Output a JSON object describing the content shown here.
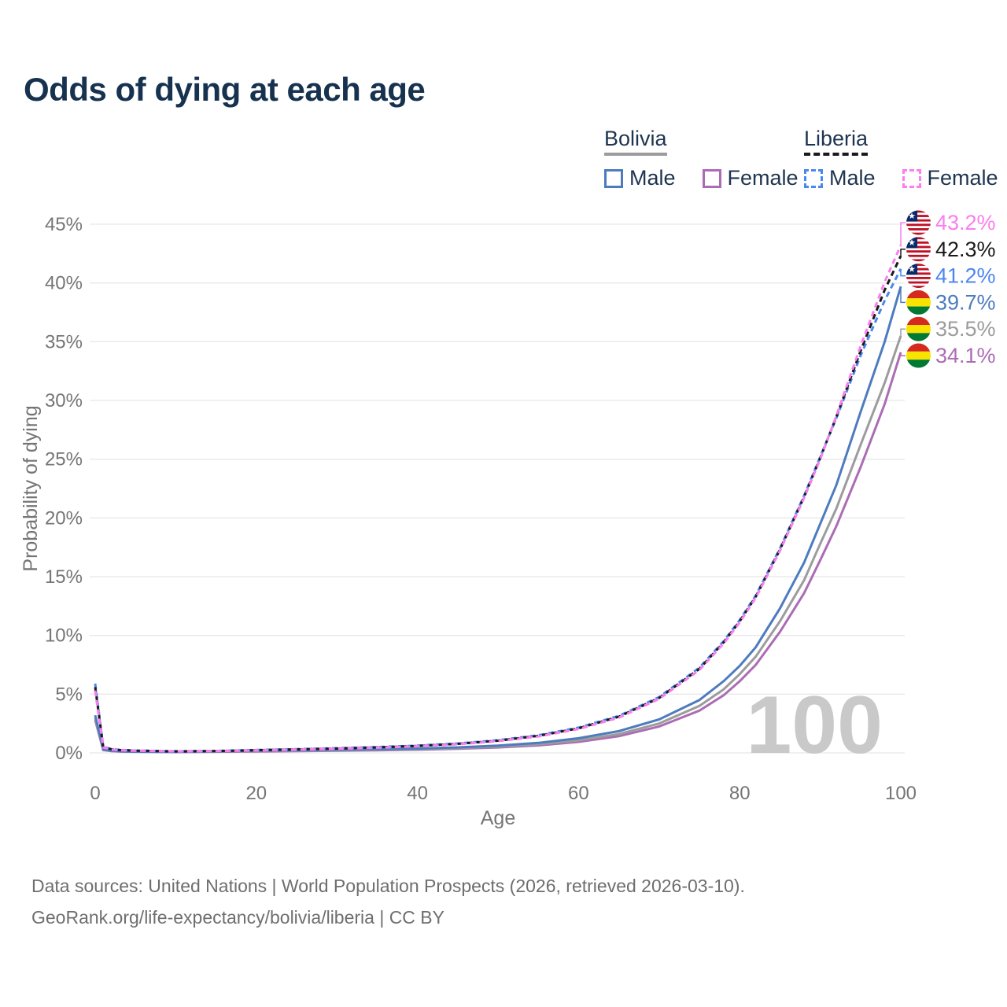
{
  "title": "Odds of dying at each age",
  "watermark": "100",
  "legend": {
    "bolivia": {
      "country": "Bolivia",
      "male": "Male",
      "female": "Female"
    },
    "liberia": {
      "country": "Liberia",
      "male": "Male",
      "female": "Female"
    }
  },
  "footer": {
    "line1": "Data sources: United Nations | World Population Prospects (2026, retrieved 2026-03-10).",
    "line2": "GeoRank.org/life-expectancy/bolivia/liberia | CC BY"
  },
  "colors": {
    "title_navy": "#16324f",
    "axis_gray": "#757575",
    "gridline": "#e8e8e8",
    "watermark_gray": "#c9c9c9"
  },
  "chart_data": {
    "type": "line",
    "title": "Odds of dying at each age",
    "xlabel": "Age",
    "ylabel": "Probability of dying",
    "xlim": [
      0,
      100
    ],
    "ylim": [
      0,
      45
    ],
    "xticks": [
      0,
      20,
      40,
      60,
      80,
      100
    ],
    "yticks": [
      0,
      5,
      10,
      15,
      20,
      25,
      30,
      35,
      40,
      45
    ],
    "grid": true,
    "legend_position": "top-right",
    "x": [
      0,
      1,
      2,
      3,
      5,
      10,
      15,
      20,
      25,
      30,
      35,
      40,
      45,
      50,
      55,
      60,
      65,
      70,
      75,
      78,
      80,
      82,
      85,
      88,
      90,
      92,
      95,
      98,
      100
    ],
    "series": [
      {
        "key": "liberia-female",
        "name": "Liberia Female",
        "country": "Liberia",
        "sex": "Female",
        "color": "#fb7df0",
        "dash": "7 5",
        "flag": "liberia",
        "end_value": 43.2,
        "end_label": "43.2%",
        "values": [
          5.3,
          0.46,
          0.29,
          0.23,
          0.18,
          0.12,
          0.15,
          0.21,
          0.28,
          0.35,
          0.44,
          0.56,
          0.73,
          1.0,
          1.4,
          2.03,
          3.0,
          4.6,
          7.05,
          9.3,
          11.1,
          13.2,
          17.2,
          21.7,
          25.0,
          28.7,
          34.6,
          40.1,
          43.2
        ]
      },
      {
        "key": "liberia",
        "name": "Liberia (both sexes)",
        "country": "Liberia",
        "sex": "Both",
        "color": "#1a1a1a",
        "dash": "7 5",
        "flag": "liberia",
        "end_value": 42.3,
        "end_label": "42.3%",
        "values": [
          5.6,
          0.49,
          0.31,
          0.24,
          0.19,
          0.13,
          0.16,
          0.23,
          0.3,
          0.37,
          0.47,
          0.59,
          0.77,
          1.04,
          1.45,
          2.09,
          3.08,
          4.67,
          7.15,
          9.4,
          11.2,
          13.3,
          17.3,
          21.8,
          25.1,
          28.6,
          34.2,
          39.4,
          42.3
        ]
      },
      {
        "key": "liberia-male",
        "name": "Liberia Male",
        "country": "Liberia",
        "sex": "Male",
        "color": "#4b87f0",
        "dash": "7 5",
        "flag": "liberia",
        "end_value": 41.2,
        "end_label": "41.2%",
        "values": [
          5.9,
          0.52,
          0.33,
          0.26,
          0.2,
          0.14,
          0.17,
          0.25,
          0.32,
          0.4,
          0.5,
          0.62,
          0.8,
          1.08,
          1.5,
          2.15,
          3.15,
          4.75,
          7.25,
          9.5,
          11.3,
          13.4,
          17.4,
          21.9,
          25.2,
          28.5,
          33.8,
          38.5,
          41.2
        ]
      },
      {
        "key": "bolivia-male",
        "name": "Bolivia Male",
        "country": "Bolivia",
        "sex": "Male",
        "color": "#4d7cbe",
        "dash": null,
        "flag": "bolivia",
        "end_value": 39.7,
        "end_label": "39.7%",
        "values": [
          3.2,
          0.28,
          0.18,
          0.14,
          0.11,
          0.09,
          0.13,
          0.19,
          0.23,
          0.27,
          0.31,
          0.37,
          0.47,
          0.62,
          0.85,
          1.25,
          1.85,
          2.85,
          4.5,
          6.1,
          7.4,
          9.0,
          12.3,
          16.2,
          19.5,
          22.8,
          29.0,
          35.0,
          39.7
        ]
      },
      {
        "key": "bolivia",
        "name": "Bolivia (both sexes)",
        "country": "Bolivia",
        "sex": "Both",
        "color": "#9c9c9c",
        "dash": null,
        "flag": "bolivia",
        "end_value": 35.5,
        "end_label": "35.5%",
        "values": [
          3.0,
          0.26,
          0.16,
          0.13,
          0.1,
          0.08,
          0.11,
          0.15,
          0.185,
          0.22,
          0.26,
          0.31,
          0.4,
          0.53,
          0.73,
          1.07,
          1.6,
          2.5,
          4.0,
          5.4,
          6.7,
          8.2,
          11.2,
          14.7,
          17.8,
          20.8,
          26.2,
          31.5,
          35.5
        ]
      },
      {
        "key": "bolivia-female",
        "name": "Bolivia Female",
        "country": "Bolivia",
        "sex": "Female",
        "color": "#ac6cb5",
        "dash": null,
        "flag": "bolivia",
        "end_value": 34.1,
        "end_label": "34.1%",
        "values": [
          2.8,
          0.24,
          0.15,
          0.12,
          0.09,
          0.07,
          0.09,
          0.12,
          0.15,
          0.18,
          0.22,
          0.27,
          0.35,
          0.46,
          0.64,
          0.94,
          1.42,
          2.25,
          3.6,
          4.9,
          6.1,
          7.5,
          10.3,
          13.6,
          16.4,
          19.3,
          24.3,
          29.7,
          34.1
        ]
      }
    ]
  }
}
